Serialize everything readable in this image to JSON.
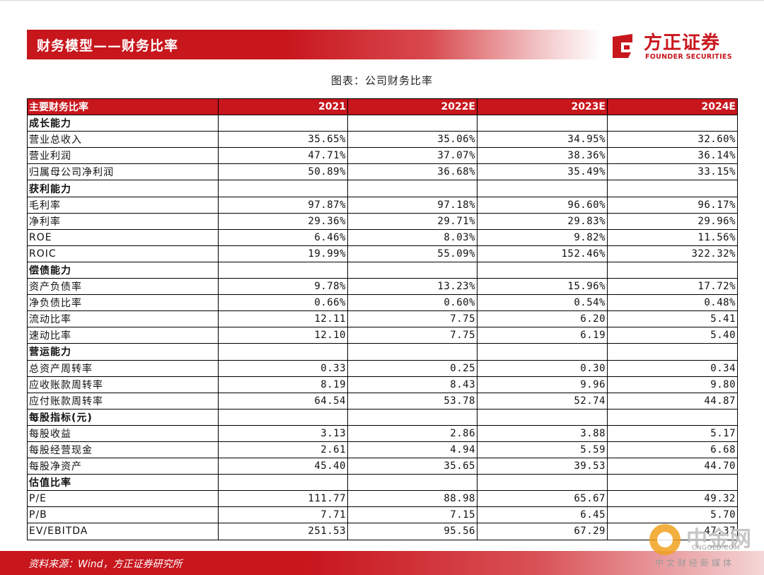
{
  "header": {
    "title": "财务模型——财务比率",
    "logo_cn": "方正证券",
    "logo_en": "FOUNDER SECURITIES"
  },
  "caption": "图表：公司财务比率",
  "table": {
    "header_label": "主要财务比率",
    "years": [
      "2021",
      "2022E",
      "2023E",
      "2024E"
    ],
    "rows": [
      {
        "label": "成长能力",
        "section": true,
        "values": [
          "",
          "",
          "",
          ""
        ]
      },
      {
        "label": "营业总收入",
        "values": [
          "35.65%",
          "35.06%",
          "34.95%",
          "32.60%"
        ]
      },
      {
        "label": "营业利润",
        "values": [
          "47.71%",
          "37.07%",
          "38.36%",
          "36.14%"
        ]
      },
      {
        "label": "归属母公司净利润",
        "values": [
          "50.89%",
          "36.68%",
          "35.49%",
          "33.15%"
        ]
      },
      {
        "label": "获利能力",
        "section": true,
        "values": [
          "",
          "",
          "",
          ""
        ]
      },
      {
        "label": "毛利率",
        "values": [
          "97.87%",
          "97.18%",
          "96.60%",
          "96.17%"
        ]
      },
      {
        "label": "净利率",
        "values": [
          "29.36%",
          "29.71%",
          "29.83%",
          "29.96%"
        ]
      },
      {
        "label": "ROE",
        "values": [
          "6.46%",
          "8.03%",
          "9.82%",
          "11.56%"
        ]
      },
      {
        "label": "ROIC",
        "values": [
          "19.99%",
          "55.09%",
          "152.46%",
          "322.32%"
        ]
      },
      {
        "label": "偿债能力",
        "section": true,
        "values": [
          "",
          "",
          "",
          ""
        ]
      },
      {
        "label": "资产负债率",
        "values": [
          "9.78%",
          "13.23%",
          "15.96%",
          "17.72%"
        ]
      },
      {
        "label": "净负债比率",
        "values": [
          "0.66%",
          "0.60%",
          "0.54%",
          "0.48%"
        ]
      },
      {
        "label": "流动比率",
        "values": [
          "12.11",
          "7.75",
          "6.20",
          "5.41"
        ]
      },
      {
        "label": "速动比率",
        "values": [
          "12.10",
          "7.75",
          "6.19",
          "5.40"
        ]
      },
      {
        "label": "营运能力",
        "section": true,
        "values": [
          "",
          "",
          "",
          ""
        ]
      },
      {
        "label": "总资产周转率",
        "values": [
          "0.33",
          "0.25",
          "0.30",
          "0.34"
        ]
      },
      {
        "label": "应收账款周转率",
        "values": [
          "8.19",
          "8.43",
          "9.96",
          "9.80"
        ]
      },
      {
        "label": "应付账款周转率",
        "values": [
          "64.54",
          "53.78",
          "52.74",
          "44.87"
        ]
      },
      {
        "label": "每股指标(元)",
        "section": true,
        "values": [
          "",
          "",
          "",
          ""
        ]
      },
      {
        "label": "每股收益",
        "values": [
          "3.13",
          "2.86",
          "3.88",
          "5.17"
        ]
      },
      {
        "label": "每股经营现金",
        "values": [
          "2.61",
          "4.94",
          "5.59",
          "6.68"
        ]
      },
      {
        "label": "每股净资产",
        "values": [
          "45.40",
          "35.65",
          "39.53",
          "44.70"
        ]
      },
      {
        "label": "估值比率",
        "section": true,
        "values": [
          "",
          "",
          "",
          ""
        ]
      },
      {
        "label": "P/E",
        "values": [
          "111.77",
          "88.98",
          "65.67",
          "49.32"
        ]
      },
      {
        "label": "P/B",
        "values": [
          "7.71",
          "7.15",
          "6.45",
          "5.70"
        ]
      },
      {
        "label": "EV/EBITDA",
        "values": [
          "251.53",
          "95.56",
          "67.29",
          "47.37"
        ]
      }
    ]
  },
  "footer": {
    "source": "资料来源：Wind，方正证券研究所"
  },
  "watermark": {
    "cn": "中金网",
    "en": "CNGOLD.COM",
    "sub": "中文财经新媒体"
  }
}
